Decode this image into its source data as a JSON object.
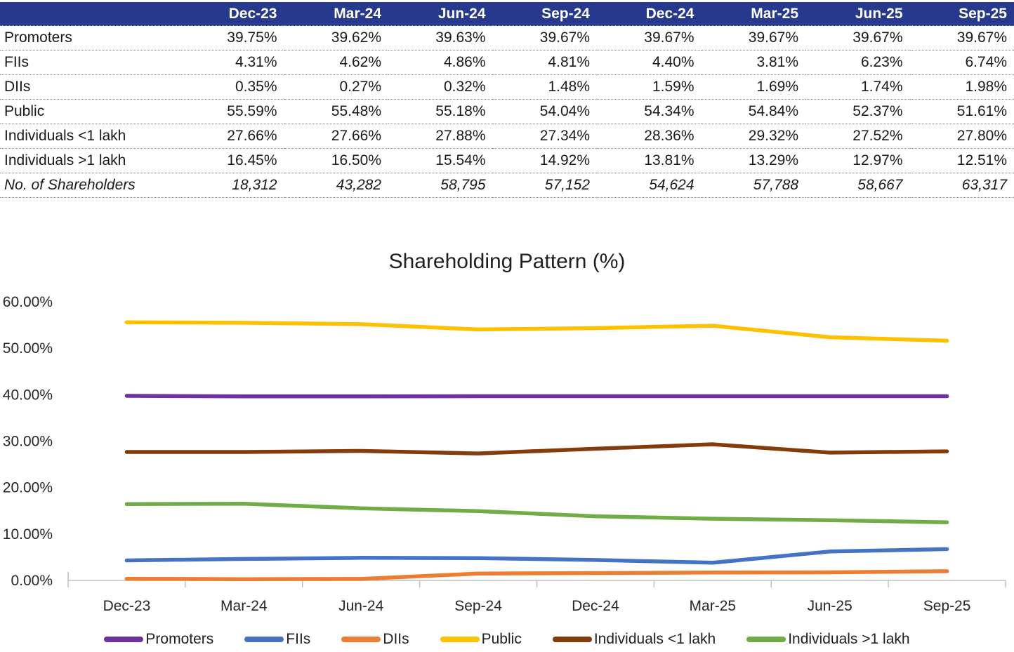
{
  "table": {
    "columns": [
      "Dec-23",
      "Mar-24",
      "Jun-24",
      "Sep-24",
      "Dec-24",
      "Mar-25",
      "Jun-25",
      "Sep-25"
    ],
    "rows": [
      {
        "label": "Promoters",
        "italic": false,
        "values": [
          "39.75%",
          "39.62%",
          "39.63%",
          "39.67%",
          "39.67%",
          "39.67%",
          "39.67%",
          "39.67%"
        ]
      },
      {
        "label": "FIIs",
        "italic": false,
        "values": [
          "4.31%",
          "4.62%",
          "4.86%",
          "4.81%",
          "4.40%",
          "3.81%",
          "6.23%",
          "6.74%"
        ]
      },
      {
        "label": "DIIs",
        "italic": false,
        "values": [
          "0.35%",
          "0.27%",
          "0.32%",
          "1.48%",
          "1.59%",
          "1.69%",
          "1.74%",
          "1.98%"
        ]
      },
      {
        "label": "Public",
        "italic": false,
        "values": [
          "55.59%",
          "55.48%",
          "55.18%",
          "54.04%",
          "54.34%",
          "54.84%",
          "52.37%",
          "51.61%"
        ]
      },
      {
        "label": "Individuals <1 lakh",
        "italic": false,
        "values": [
          "27.66%",
          "27.66%",
          "27.88%",
          "27.34%",
          "28.36%",
          "29.32%",
          "27.52%",
          "27.80%"
        ]
      },
      {
        "label": "Individuals >1 lakh",
        "italic": false,
        "values": [
          "16.45%",
          "16.50%",
          "15.54%",
          "14.92%",
          "13.81%",
          "13.29%",
          "12.97%",
          "12.51%"
        ]
      },
      {
        "label": "No. of Shareholders",
        "italic": true,
        "values": [
          "18,312",
          "43,282",
          "58,795",
          "57,152",
          "54,624",
          "57,788",
          "58,667",
          "63,317"
        ]
      }
    ]
  },
  "chart_data": {
    "type": "line",
    "title": "Shareholding Pattern (%)",
    "categories": [
      "Dec-23",
      "Mar-24",
      "Jun-24",
      "Sep-24",
      "Dec-24",
      "Mar-25",
      "Jun-25",
      "Sep-25"
    ],
    "series": [
      {
        "name": "Promoters",
        "color": "#7030A0",
        "values": [
          39.75,
          39.62,
          39.63,
          39.67,
          39.67,
          39.67,
          39.67,
          39.67
        ]
      },
      {
        "name": "FIIs",
        "color": "#4472C4",
        "values": [
          4.31,
          4.62,
          4.86,
          4.81,
          4.4,
          3.81,
          6.23,
          6.74
        ]
      },
      {
        "name": "DIIs",
        "color": "#ED7D31",
        "values": [
          0.35,
          0.27,
          0.32,
          1.48,
          1.59,
          1.69,
          1.74,
          1.98
        ]
      },
      {
        "name": "Public",
        "color": "#FFC000",
        "values": [
          55.59,
          55.48,
          55.18,
          54.04,
          54.34,
          54.84,
          52.37,
          51.61
        ]
      },
      {
        "name": "Individuals <1 lakh",
        "color": "#843C0C",
        "values": [
          27.66,
          27.66,
          27.88,
          27.34,
          28.36,
          29.32,
          27.52,
          27.8
        ]
      },
      {
        "name": "Individuals >1 lakh",
        "color": "#70AD47",
        "values": [
          16.45,
          16.5,
          15.54,
          14.92,
          13.81,
          13.29,
          12.97,
          12.51
        ]
      }
    ],
    "ylim": [
      0,
      60
    ],
    "ytick_step": 10,
    "ytick_labels": [
      "0.00%",
      "10.00%",
      "20.00%",
      "30.00%",
      "40.00%",
      "50.00%",
      "60.00%"
    ],
    "grid": false,
    "legend_position": "bottom"
  },
  "colors": {
    "header_bg": "#26398C",
    "header_text": "#FFFFFF",
    "axis_line": "#BFBFBF"
  }
}
